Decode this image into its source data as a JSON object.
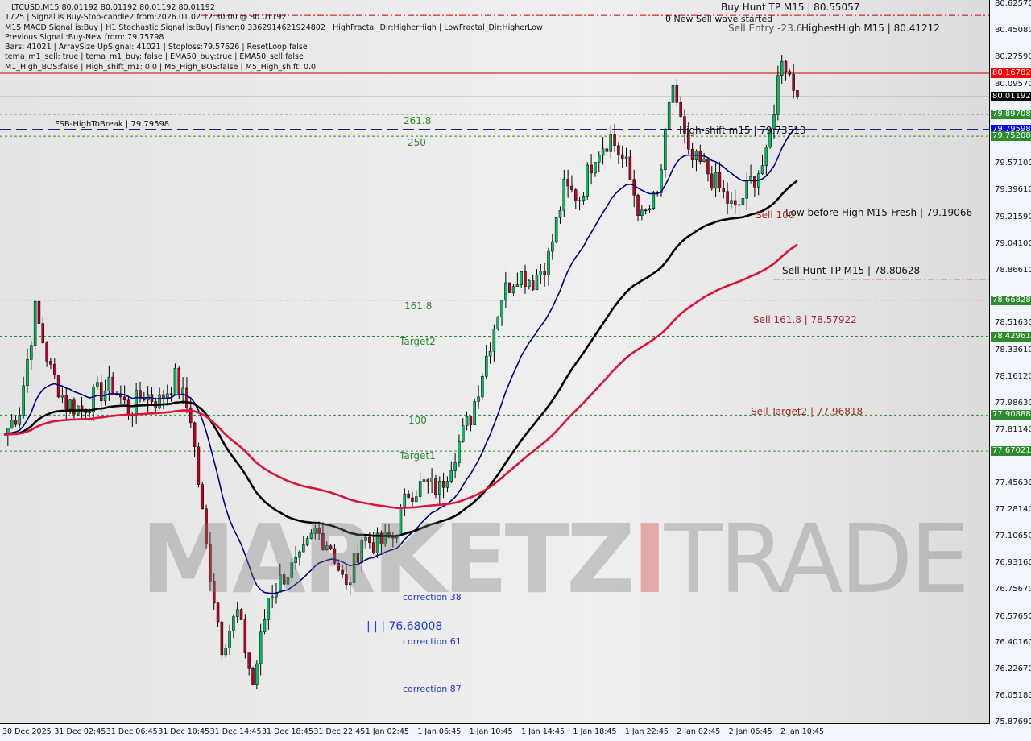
{
  "header": {
    "lines": [
      "LTCUSD,M15  80.01192 80.01192 80.01192 80.01192",
      "1725 | Signal is Buy-Stop-candle2 from:2026.01.02 12:30:00 @ 80.01192",
      "M15 MACD Signal is:Buy | H1 Stochastic Signal is:Buy| Fisher:0.3362914621924802 | HighFractal_Dir:HigherHigh | LowFractal_Dir:HigherLow",
      "Previous Signal :Buy-New from: 79.75798",
      "Bars: 41021 | ArraySize UpSignal: 41021 | Stoploss:79.57626 | ResetLoop:false",
      "tema_m1_sell: true | tema_m1_buy: false | EMA50_buy:true | EMA50_sell:false",
      "M1_High_BOS:false | High_shift_m1: 0.0 | M5_High_BOS:false | M5_High_shift: 0.0"
    ]
  },
  "watermark": {
    "a": "MARKETZ",
    "b": "I",
    "c": "TRADE"
  },
  "chart_data": {
    "type": "candlestick",
    "symbol": "LTCUSD",
    "timeframe": "M15",
    "ylim": [
      75.8769,
      80.6257
    ],
    "y_ticks": [
      "80.62570",
      "80.45080",
      "80.27590",
      "80.09570",
      "79.57100",
      "79.39610",
      "79.21590",
      "79.04100",
      "78.86610",
      "78.51630",
      "78.33610",
      "78.16120",
      "77.98630",
      "77.81140",
      "77.45630",
      "77.28140",
      "77.10650",
      "76.93160",
      "76.75670",
      "76.57650",
      "76.40160",
      "76.22670",
      "76.05180",
      "75.87690"
    ],
    "x_ticks": [
      "30 Dec 2025",
      "31 Dec 02:45",
      "31 Dec 06:45",
      "31 Dec 10:45",
      "31 Dec 14:45",
      "31 Dec 18:45",
      "31 Dec 22:45",
      "1 Jan 02:45",
      "1 Jan 06:45",
      "1 Jan 10:45",
      "1 Jan 14:45",
      "1 Jan 18:45",
      "1 Jan 22:45",
      "2 Jan 02:45",
      "2 Jan 06:45",
      "2 Jan 10:45"
    ],
    "closes_approx": [
      77.78,
      77.95,
      78.6,
      78.2,
      77.99,
      77.95,
      78.05,
      78.1,
      77.94,
      78.05,
      78.0,
      78.15,
      77.9,
      77.03,
      76.39,
      76.6,
      76.13,
      76.71,
      76.85,
      76.93,
      77.14,
      77.05,
      76.75,
      77.1,
      77.05,
      77.1,
      77.4,
      77.45,
      77.42,
      77.67,
      77.9,
      78.3,
      78.7,
      78.85,
      78.8,
      78.95,
      79.4,
      79.35,
      79.65,
      79.75,
      79.55,
      79.2,
      79.35,
      80.1,
      79.6,
      79.55,
      79.4,
      79.25,
      79.45,
      79.6,
      80.3,
      80.01192
    ],
    "price_badges": [
      {
        "text": "80.16782",
        "price": 80.16782,
        "color": "#ff0000"
      },
      {
        "text": "80.01192",
        "price": 80.01192,
        "color": "#000000"
      },
      {
        "text": "79.89708",
        "price": 79.89708,
        "color": "#2e8b2e"
      },
      {
        "text": "79.79598",
        "price": 79.79598,
        "color": "#0000ff"
      },
      {
        "text": "79.75208",
        "price": 79.75208,
        "color": "#2e8b2e"
      },
      {
        "text": "78.66828",
        "price": 78.66828,
        "color": "#2e8b2e"
      },
      {
        "text": "78.42961",
        "price": 78.42961,
        "color": "#2e8b2e"
      },
      {
        "text": "77.90888",
        "price": 77.90888,
        "color": "#2e8b2e"
      },
      {
        "text": "77.67021",
        "price": 77.67021,
        "color": "#2e8b2e"
      }
    ],
    "levels": [
      {
        "price": 80.55057,
        "color": "#cc0000",
        "style": "dashdot"
      },
      {
        "price": 80.16782,
        "color": "#cc0000",
        "style": "solid"
      },
      {
        "price": 80.01192,
        "color": "#6a7f9a",
        "style": "solid"
      },
      {
        "price": 79.89708,
        "color": "#2e8b2e",
        "style": "dotted"
      },
      {
        "price": 79.79598,
        "color": "#000080",
        "style": "dashed"
      },
      {
        "price": 79.75208,
        "color": "#2e8b2e",
        "style": "dotted"
      },
      {
        "price": 78.80628,
        "color": "#ee0000",
        "style": "dashdot"
      },
      {
        "price": 78.66828,
        "color": "#2e8b2e",
        "style": "dotted"
      },
      {
        "price": 78.42961,
        "color": "#2e8b2e",
        "style": "dotted"
      },
      {
        "price": 77.90888,
        "color": "#2e8b2e",
        "style": "dotted"
      },
      {
        "price": 77.67021,
        "color": "#2e8b2e",
        "style": "dotted"
      }
    ],
    "annotations": {
      "buy_hunt_tp": "Buy Hunt TP M15 | 80.55057",
      "new_sell_wave": "0 New Sell wave started",
      "sell_entry": "Sell Entry -23.6",
      "highest_high": "HighestHigh    M15 | 80.41212",
      "high_shift": "High-shift m15 | 79.73513",
      "fsb": "FSB-HighToBreak | 79.79598",
      "low_before_high": "Low before High    M15-Fresh | 79.19066",
      "sell_100": "Sell 100",
      "sell_hunt_tp": "Sell Hunt TP M15 | 78.80628",
      "sell_161": "Sell 161.8 | 78.57922",
      "sell_target2": "Sell Target2 | 77.96818",
      "fib_2618": "261.8",
      "fib_250": "250",
      "fib_1618": "161.8",
      "target2": "Target2",
      "fib_100": "100",
      "target1": "Target1",
      "low_mark": "| | |  76.68008",
      "corr38": "correction 38",
      "corr61": "correction 61",
      "corr87": "correction 87"
    },
    "colors": {
      "bull": "#00c060",
      "bear": "#c00020",
      "ema_fast": "#000080",
      "ma_mid": "#000000",
      "ma_slow": "#dc143c"
    }
  }
}
